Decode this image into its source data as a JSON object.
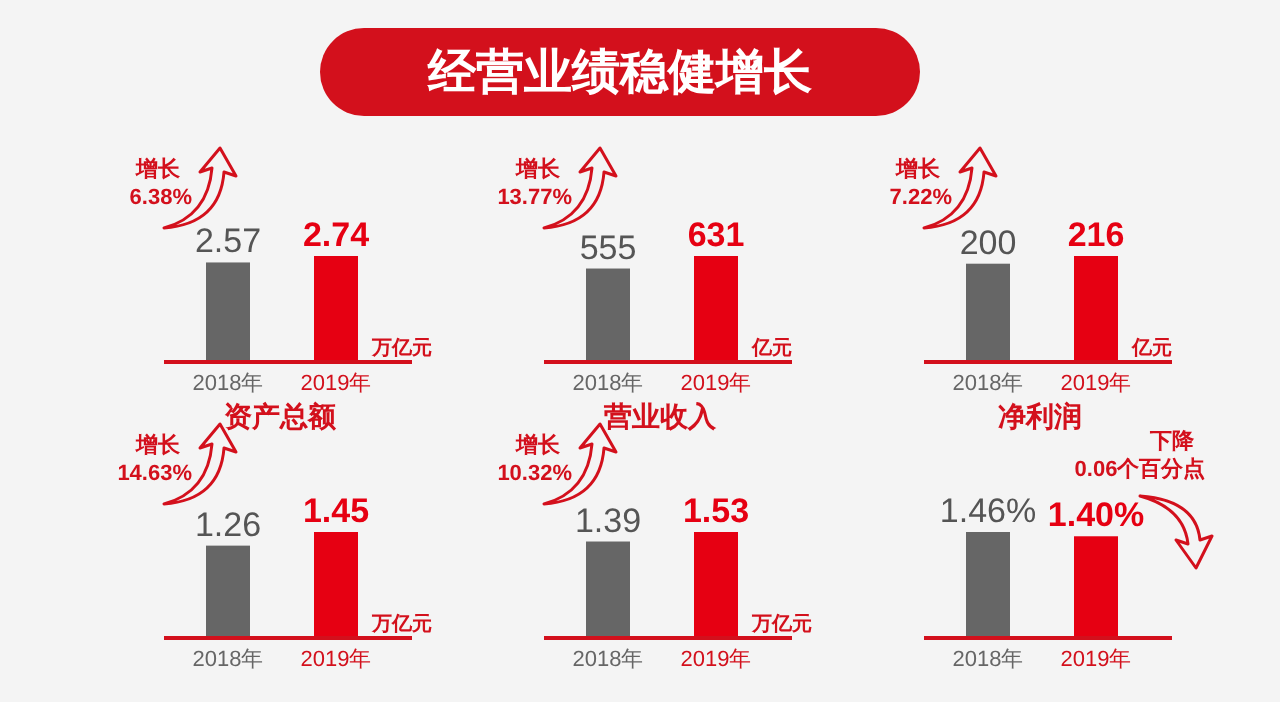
{
  "chart_data": [
    {
      "type": "other",
      "title": "经营业绩稳健增长"
    },
    {
      "type": "bar",
      "categories": [
        "2018年",
        "2019年"
      ],
      "values": [
        2.57,
        2.74
      ],
      "colors": [
        "#666666",
        "#e60012"
      ],
      "data_labels": true,
      "xlabel": "资产总额",
      "annotations": [
        "增长",
        "6.38%",
        "万亿元"
      ]
    },
    {
      "type": "bar",
      "categories": [
        "2018年",
        "2019年"
      ],
      "values": [
        555,
        631
      ],
      "colors": [
        "#666666",
        "#e60012"
      ],
      "data_labels": true,
      "xlabel": "营业收入",
      "annotations": [
        "增长",
        "13.77%",
        "亿元"
      ]
    },
    {
      "type": "bar",
      "categories": [
        "2018年",
        "2019年"
      ],
      "values": [
        200,
        216
      ],
      "colors": [
        "#666666",
        "#e60012"
      ],
      "data_labels": true,
      "xlabel": "净利润",
      "annotations": [
        "增长",
        "7.22%",
        "亿元"
      ]
    },
    {
      "type": "bar",
      "categories": [
        "2018年",
        "2019年"
      ],
      "values": [
        1.26,
        1.45
      ],
      "colors": [
        "#666666",
        "#e60012"
      ],
      "data_labels": true,
      "annotations": [
        "增长",
        "14.63%",
        "万亿元"
      ]
    },
    {
      "type": "bar",
      "categories": [
        "2018年",
        "2019年"
      ],
      "values": [
        1.39,
        1.53
      ],
      "colors": [
        "#666666",
        "#e60012"
      ],
      "data_labels": true,
      "annotations": [
        "增长",
        "10.32%",
        "万亿元"
      ]
    },
    {
      "type": "bar",
      "categories": [
        "2018年",
        "2019年"
      ],
      "values": [
        1.46,
        1.4
      ],
      "colors": [
        "#666666",
        "#e60012"
      ],
      "value_labels": [
        "1.46%",
        "1.40%"
      ],
      "annotations": [
        "下降",
        "0.06个百分点"
      ]
    }
  ]
}
